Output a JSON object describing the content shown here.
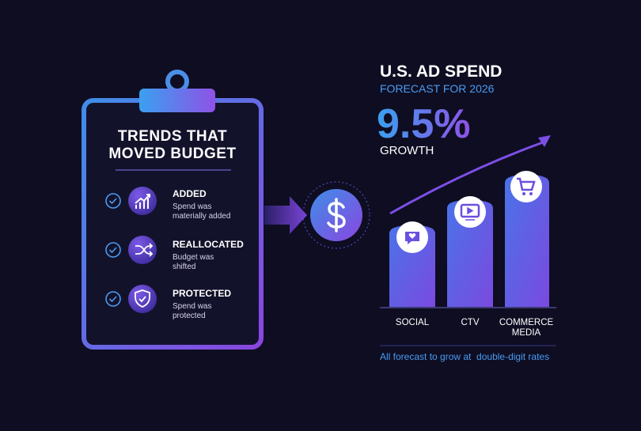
{
  "clipboard": {
    "title": [
      "TRENDS THAT",
      "MOVED BUDGET"
    ],
    "items": [
      {
        "label": "ADDED",
        "description": [
          "Spend was",
          "materially added"
        ]
      },
      {
        "label": "REALLOCATED",
        "description": [
          "Budget was",
          "shifted"
        ]
      },
      {
        "label": "PROTECTED",
        "description": [
          "Spend was",
          "protected"
        ]
      }
    ]
  },
  "forecast": {
    "title": "U.S. AD SPEND",
    "subtitle": "FORECAST FOR 2026",
    "growth_value": "9.5%",
    "growth_label": "GROWTH",
    "categories": [
      [
        "SOCIAL"
      ],
      [
        "CTV"
      ],
      [
        "COMMERCE",
        "MEDIA"
      ]
    ],
    "footnote": "All forecast to grow at  double-digit rates"
  }
}
